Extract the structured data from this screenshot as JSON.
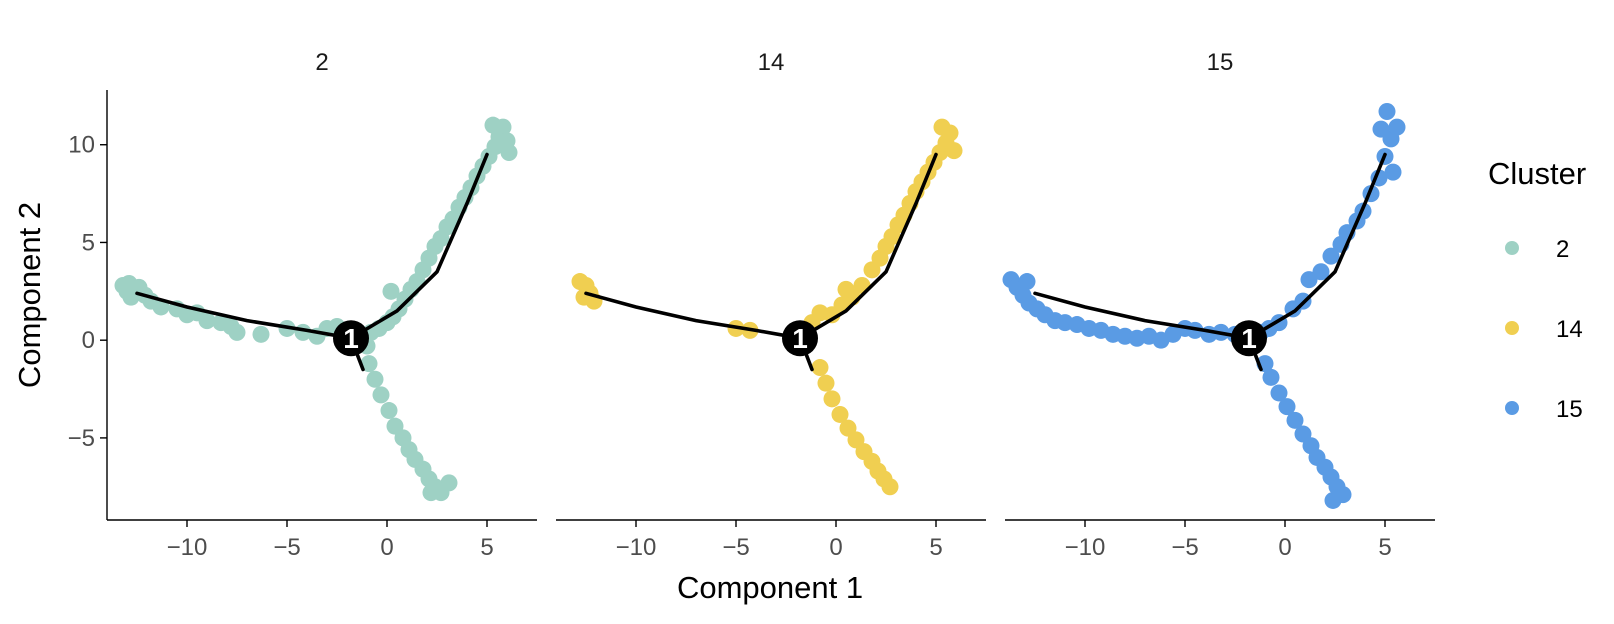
{
  "chart_data": {
    "type": "scatter",
    "facet_variable": "Cluster",
    "xlabel": "Component 1",
    "ylabel": "Component 2",
    "xlim": [
      -14,
      7.5
    ],
    "ylim": [
      -9.2,
      12.8
    ],
    "x_ticks": [
      {
        "value": -10,
        "label": "−10"
      },
      {
        "value": -5,
        "label": "−5"
      },
      {
        "value": 0,
        "label": "0"
      },
      {
        "value": 5,
        "label": "5"
      }
    ],
    "y_ticks": [
      {
        "value": -5,
        "label": "−5"
      },
      {
        "value": 0,
        "label": "0"
      },
      {
        "value": 5,
        "label": "5"
      },
      {
        "value": 10,
        "label": "10"
      }
    ],
    "grid": false,
    "legend": {
      "title": "Cluster",
      "placement": "right",
      "entries": [
        {
          "label": "2",
          "color": "#9ED1C4"
        },
        {
          "label": "14",
          "color": "#F0CF51"
        },
        {
          "label": "15",
          "color": "#5A9BE4"
        }
      ]
    },
    "trajectory": {
      "root": {
        "x": -1.8,
        "y": 0.1,
        "label": "1"
      },
      "left_branch": [
        [
          -1.8,
          0.1
        ],
        [
          -4.0,
          0.5
        ],
        [
          -7.0,
          1.0
        ],
        [
          -10.0,
          1.7
        ],
        [
          -12.5,
          2.4
        ]
      ],
      "upper_branch": [
        [
          -1.8,
          0.1
        ],
        [
          0.5,
          1.5
        ],
        [
          2.5,
          3.5
        ],
        [
          4.0,
          7.0
        ],
        [
          5.0,
          9.5
        ]
      ],
      "lower_branch": [
        [
          -1.8,
          0.1
        ],
        [
          -1.2,
          -1.5
        ]
      ]
    },
    "facets": [
      {
        "title": "2",
        "color": "#9ED1C4",
        "points": [
          [
            -13.2,
            2.8
          ],
          [
            -13.0,
            2.5
          ],
          [
            -12.9,
            2.9
          ],
          [
            -12.6,
            2.4
          ],
          [
            -12.4,
            2.7
          ],
          [
            -12.1,
            2.3
          ],
          [
            -12.8,
            2.2
          ],
          [
            -11.8,
            2.0
          ],
          [
            -11.3,
            1.7
          ],
          [
            -10.5,
            1.6
          ],
          [
            -10.0,
            1.3
          ],
          [
            -9.5,
            1.4
          ],
          [
            -9.0,
            1.0
          ],
          [
            -8.3,
            0.9
          ],
          [
            -7.8,
            0.7
          ],
          [
            -7.5,
            0.4
          ],
          [
            -6.3,
            0.3
          ],
          [
            -5.0,
            0.6
          ],
          [
            -4.2,
            0.4
          ],
          [
            -3.5,
            0.2
          ],
          [
            -3.0,
            0.6
          ],
          [
            -2.5,
            0.7
          ],
          [
            -2.2,
            0.3
          ],
          [
            -1.5,
            0.0
          ],
          [
            -1.0,
            -0.3
          ],
          [
            -0.8,
            0.4
          ],
          [
            -0.4,
            0.6
          ],
          [
            0.0,
            0.9
          ],
          [
            0.3,
            1.2
          ],
          [
            0.2,
            2.5
          ],
          [
            0.6,
            1.6
          ],
          [
            0.9,
            2.1
          ],
          [
            1.2,
            2.6
          ],
          [
            1.5,
            3.0
          ],
          [
            1.8,
            3.6
          ],
          [
            2.1,
            4.2
          ],
          [
            2.4,
            4.8
          ],
          [
            2.7,
            5.2
          ],
          [
            3.0,
            5.8
          ],
          [
            3.3,
            6.2
          ],
          [
            3.6,
            6.8
          ],
          [
            3.9,
            7.3
          ],
          [
            4.2,
            7.8
          ],
          [
            4.5,
            8.4
          ],
          [
            4.8,
            8.9
          ],
          [
            5.1,
            9.4
          ],
          [
            5.4,
            9.9
          ],
          [
            5.6,
            10.4
          ],
          [
            5.8,
            10.9
          ],
          [
            5.3,
            11.0
          ],
          [
            6.0,
            10.2
          ],
          [
            6.1,
            9.6
          ],
          [
            -0.9,
            -1.2
          ],
          [
            -0.6,
            -2.0
          ],
          [
            -0.3,
            -2.8
          ],
          [
            0.1,
            -3.6
          ],
          [
            0.4,
            -4.4
          ],
          [
            0.8,
            -5.0
          ],
          [
            1.1,
            -5.6
          ],
          [
            1.4,
            -6.1
          ],
          [
            1.8,
            -6.6
          ],
          [
            2.1,
            -7.1
          ],
          [
            2.4,
            -7.5
          ],
          [
            2.7,
            -7.8
          ],
          [
            3.1,
            -7.3
          ],
          [
            2.2,
            -7.8
          ]
        ]
      },
      {
        "title": "14",
        "color": "#F0CF51",
        "points": [
          [
            -12.8,
            3.0
          ],
          [
            -12.5,
            2.8
          ],
          [
            -12.3,
            2.4
          ],
          [
            -12.1,
            2.0
          ],
          [
            -12.6,
            2.2
          ],
          [
            -5.0,
            0.6
          ],
          [
            -4.3,
            0.5
          ],
          [
            -1.2,
            0.9
          ],
          [
            -0.8,
            1.4
          ],
          [
            -0.2,
            1.3
          ],
          [
            0.3,
            1.8
          ],
          [
            0.8,
            2.2
          ],
          [
            0.5,
            2.6
          ],
          [
            1.3,
            2.8
          ],
          [
            1.8,
            3.6
          ],
          [
            2.2,
            4.2
          ],
          [
            2.5,
            4.8
          ],
          [
            2.8,
            5.3
          ],
          [
            3.1,
            5.9
          ],
          [
            3.4,
            6.4
          ],
          [
            3.7,
            7.0
          ],
          [
            4.0,
            7.6
          ],
          [
            4.3,
            8.1
          ],
          [
            4.6,
            8.6
          ],
          [
            4.9,
            9.1
          ],
          [
            5.2,
            9.6
          ],
          [
            5.5,
            10.1
          ],
          [
            5.7,
            10.6
          ],
          [
            5.3,
            10.9
          ],
          [
            5.9,
            9.7
          ],
          [
            -0.8,
            -1.4
          ],
          [
            -0.5,
            -2.2
          ],
          [
            -0.2,
            -3.0
          ],
          [
            0.2,
            -3.8
          ],
          [
            0.6,
            -4.5
          ],
          [
            1.0,
            -5.1
          ],
          [
            1.4,
            -5.7
          ],
          [
            1.8,
            -6.2
          ],
          [
            2.1,
            -6.7
          ],
          [
            2.4,
            -7.1
          ],
          [
            2.7,
            -7.5
          ]
        ]
      },
      {
        "title": "15",
        "color": "#5A9BE4",
        "points": [
          [
            -13.7,
            3.1
          ],
          [
            -13.4,
            2.7
          ],
          [
            -13.1,
            2.3
          ],
          [
            -12.8,
            1.9
          ],
          [
            -12.4,
            1.6
          ],
          [
            -12.9,
            3.0
          ],
          [
            -12.0,
            1.3
          ],
          [
            -11.5,
            1.0
          ],
          [
            -11.0,
            0.9
          ],
          [
            -10.4,
            0.8
          ],
          [
            -9.8,
            0.6
          ],
          [
            -9.2,
            0.5
          ],
          [
            -8.6,
            0.3
          ],
          [
            -8.0,
            0.2
          ],
          [
            -7.4,
            0.1
          ],
          [
            -6.8,
            0.2
          ],
          [
            -6.2,
            0.0
          ],
          [
            -5.6,
            0.3
          ],
          [
            -5.0,
            0.6
          ],
          [
            -4.5,
            0.5
          ],
          [
            -3.8,
            0.3
          ],
          [
            -3.2,
            0.4
          ],
          [
            -2.5,
            0.3
          ],
          [
            -1.8,
            0.1
          ],
          [
            -1.2,
            0.4
          ],
          [
            -0.8,
            0.6
          ],
          [
            -0.3,
            0.9
          ],
          [
            0.4,
            1.6
          ],
          [
            0.9,
            2.0
          ],
          [
            1.2,
            3.1
          ],
          [
            1.8,
            3.5
          ],
          [
            2.3,
            4.3
          ],
          [
            2.8,
            4.9
          ],
          [
            3.1,
            5.5
          ],
          [
            3.6,
            6.1
          ],
          [
            3.9,
            6.6
          ],
          [
            4.3,
            7.5
          ],
          [
            4.7,
            8.3
          ],
          [
            5.0,
            9.4
          ],
          [
            5.3,
            10.3
          ],
          [
            5.6,
            10.9
          ],
          [
            5.1,
            11.7
          ],
          [
            4.8,
            10.8
          ],
          [
            5.4,
            8.6
          ],
          [
            -1.0,
            -1.2
          ],
          [
            -0.7,
            -1.9
          ],
          [
            -0.3,
            -2.7
          ],
          [
            0.1,
            -3.4
          ],
          [
            0.5,
            -4.1
          ],
          [
            0.9,
            -4.8
          ],
          [
            1.3,
            -5.4
          ],
          [
            1.6,
            -6.0
          ],
          [
            2.0,
            -6.5
          ],
          [
            2.3,
            -7.0
          ],
          [
            2.6,
            -7.5
          ],
          [
            2.9,
            -7.9
          ],
          [
            2.4,
            -8.2
          ]
        ]
      }
    ]
  }
}
